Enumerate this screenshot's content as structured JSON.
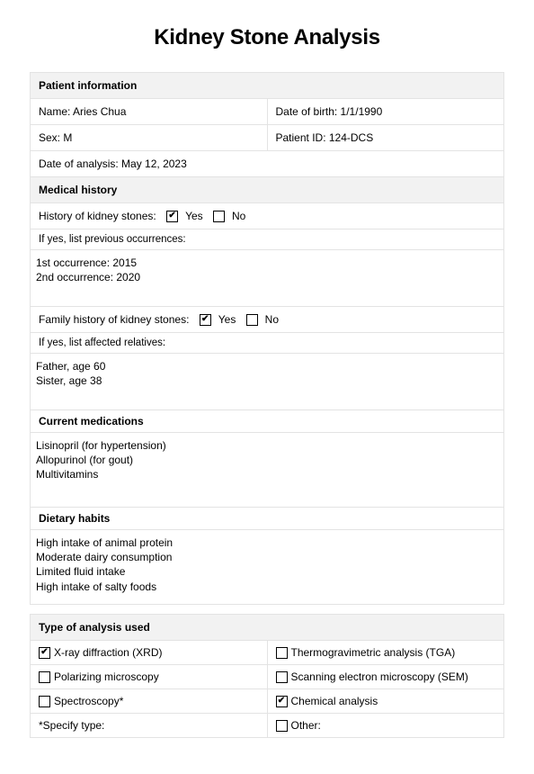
{
  "title": "Kidney Stone Analysis",
  "colors": {
    "section_bg": "#f2f2f2",
    "border": "#e3e3e3",
    "text": "#000000",
    "page_bg": "#ffffff"
  },
  "sections": {
    "patient_info": {
      "header": "Patient information",
      "fields": {
        "name_label": "Name: ",
        "name_value": "Aries Chua",
        "dob_label": "Date of birth: ",
        "dob_value": "1/1/1990",
        "sex_label": "Sex: ",
        "sex_value": "M",
        "pid_label": "Patient ID: ",
        "pid_value": "124-DCS",
        "analysis_date_label": "Date of analysis: ",
        "analysis_date_value": "May 12, 2023"
      }
    },
    "medical_history": {
      "header": "Medical history",
      "history_label": "History of kidney stones:",
      "yes_label": "Yes",
      "no_label": "No",
      "history_yes_checked": true,
      "history_no_checked": false,
      "prev_occ_label": "If yes, list previous occurrences:",
      "prev_occ_text": "1st occurrence: 2015\n2nd occurrence: 2020",
      "family_label": "Family history of kidney stones:",
      "family_yes_checked": true,
      "family_no_checked": false,
      "affected_label": "If yes, list affected relatives:",
      "affected_text": "Father, age 60\nSister, age 38",
      "current_meds_header": "Current medications",
      "current_meds_text": "Lisinopril (for hypertension)\nAllopurinol (for gout)\nMultivitamins",
      "dietary_header": "Dietary habits",
      "dietary_text": "High intake of animal protein\nModerate dairy consumption\nLimited fluid intake\nHigh intake of salty foods"
    },
    "analysis_type": {
      "header": "Type of analysis used",
      "options": [
        {
          "label": "X-ray diffraction (XRD)",
          "checked": true
        },
        {
          "label": "Thermogravimetric analysis (TGA)",
          "checked": false
        },
        {
          "label": "Polarizing microscopy",
          "checked": false
        },
        {
          "label": "Scanning electron microscopy (SEM)",
          "checked": false
        },
        {
          "label": "Spectroscopy*",
          "checked": false
        },
        {
          "label": "Chemical analysis",
          "checked": true
        }
      ],
      "specify_label": "*Specify type:",
      "other_label": "Other:"
    }
  }
}
